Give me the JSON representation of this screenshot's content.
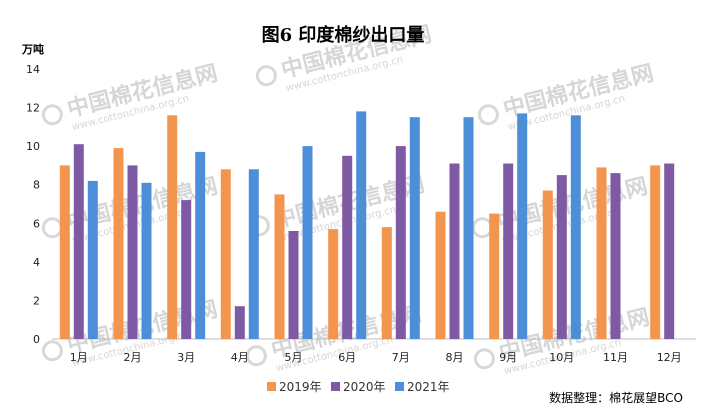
{
  "chart_data": {
    "type": "bar",
    "title": "图6 印度棉纱出口量",
    "ylabel": "万吨",
    "ylim": [
      0,
      14
    ],
    "yticks": [
      "0",
      "2",
      "4",
      "6",
      "8",
      "10",
      "12",
      "14"
    ],
    "grid": false,
    "legend_position": "bottom",
    "categories": [
      "1月",
      "2月",
      "3月",
      "4月",
      "5月",
      "6月",
      "7月",
      "8月",
      "9月",
      "10月",
      "11月",
      "12月"
    ],
    "series": [
      {
        "name": "2019年",
        "color": "#f4954f",
        "values": [
          9.0,
          9.9,
          11.6,
          8.8,
          7.5,
          5.7,
          5.8,
          6.6,
          6.5,
          7.7,
          8.9,
          9.0
        ]
      },
      {
        "name": "2020年",
        "color": "#7e5aa4",
        "values": [
          10.1,
          9.0,
          7.2,
          1.7,
          5.6,
          9.5,
          10.0,
          9.1,
          9.1,
          8.5,
          8.6,
          9.1
        ]
      },
      {
        "name": "2021年",
        "color": "#4c8ed8",
        "values": [
          8.2,
          8.1,
          9.7,
          8.8,
          10.0,
          11.8,
          11.5,
          11.5,
          11.7,
          11.6,
          null,
          null
        ]
      }
    ],
    "source_note": "数据整理：棉花展望BCO"
  },
  "watermark": {
    "text": "中国棉花信息网",
    "url": "www.cottonchina.org.cn"
  }
}
